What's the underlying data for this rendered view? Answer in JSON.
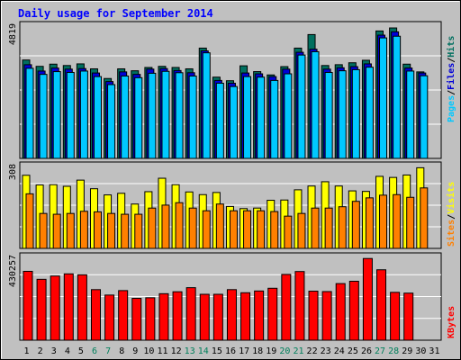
{
  "title": "Daily usage for September 2014",
  "colors": {
    "background": "#c0c0c0",
    "title": "#0000ff",
    "hits": "#006f5f",
    "files": "#0000d8",
    "pages": "#00c8ff",
    "visits": "#ffff00",
    "sites": "#ff8000",
    "kbytes": "#ff0000",
    "weekday_label": "#000000",
    "weekend_label": "#00805c"
  },
  "chart_data": [
    {
      "type": "bar",
      "panel": "hits-files-pages",
      "ymax_label": "4819",
      "side_legend": [
        "Pages",
        "Files",
        "Hits"
      ],
      "categories": [
        "1",
        "2",
        "3",
        "4",
        "5",
        "6",
        "7",
        "8",
        "9",
        "10",
        "11",
        "12",
        "13",
        "14",
        "15",
        "16",
        "17",
        "18",
        "19",
        "20",
        "21",
        "22",
        "23",
        "24",
        "25",
        "26",
        "27",
        "28",
        "29",
        "30",
        "31"
      ],
      "weekend_days": [
        "6",
        "7",
        "13",
        "14",
        "20",
        "21",
        "27",
        "28"
      ],
      "ylim": [
        0,
        4819
      ],
      "series": [
        {
          "name": "Hits",
          "values": [
            3560,
            3330,
            3410,
            3360,
            3420,
            3240,
            2890,
            3240,
            3170,
            3290,
            3330,
            3290,
            3240,
            3990,
            2940,
            2810,
            3350,
            3140,
            3020,
            3320,
            3990,
            4480,
            3360,
            3390,
            3460,
            3550,
            4610,
            4720,
            3410,
            3130,
            0
          ]
        },
        {
          "name": "Files",
          "values": [
            3390,
            3160,
            3270,
            3230,
            3250,
            3090,
            2780,
            3130,
            3040,
            3230,
            3250,
            3180,
            3100,
            3890,
            2820,
            2720,
            3090,
            3060,
            2960,
            3230,
            3840,
            3950,
            3230,
            3280,
            3320,
            3420,
            4460,
            4580,
            3270,
            3090,
            0
          ]
        },
        {
          "name": "Pages",
          "values": [
            3260,
            3040,
            3140,
            3110,
            3160,
            2960,
            2670,
            2980,
            2920,
            3080,
            3150,
            3100,
            2980,
            3820,
            2720,
            2600,
            2960,
            2940,
            2820,
            3060,
            3740,
            3860,
            3110,
            3170,
            3210,
            3300,
            4360,
            4420,
            3160,
            2990,
            0
          ]
        }
      ]
    },
    {
      "type": "bar",
      "panel": "visits-sites",
      "ymax_label": "308",
      "side_legend": [
        "Sites",
        "Visits"
      ],
      "categories": [
        "1",
        "2",
        "3",
        "4",
        "5",
        "6",
        "7",
        "8",
        "9",
        "10",
        "11",
        "12",
        "13",
        "14",
        "15",
        "16",
        "17",
        "18",
        "19",
        "20",
        "21",
        "22",
        "23",
        "24",
        "25",
        "26",
        "27",
        "28",
        "29",
        "30",
        "31"
      ],
      "ylim": [
        0,
        308
      ],
      "series": [
        {
          "name": "Visits",
          "values": [
            272,
            236,
            237,
            231,
            254,
            222,
            199,
            205,
            165,
            211,
            261,
            237,
            210,
            200,
            208,
            156,
            148,
            150,
            179,
            180,
            218,
            232,
            248,
            232,
            214,
            212,
            268,
            264,
            273,
            300,
            0
          ]
        },
        {
          "name": "Sites",
          "values": [
            203,
            130,
            127,
            130,
            138,
            136,
            130,
            127,
            127,
            150,
            161,
            170,
            150,
            140,
            165,
            140,
            140,
            140,
            137,
            120,
            130,
            150,
            150,
            155,
            175,
            188,
            198,
            200,
            190,
            225,
            0
          ]
        }
      ]
    },
    {
      "type": "bar",
      "panel": "kbytes",
      "ymax_label": "430257",
      "side_legend": [
        "KBytes"
      ],
      "categories": [
        "1",
        "2",
        "3",
        "4",
        "5",
        "6",
        "7",
        "8",
        "9",
        "10",
        "11",
        "12",
        "13",
        "14",
        "15",
        "16",
        "17",
        "18",
        "19",
        "20",
        "21",
        "22",
        "23",
        "24",
        "25",
        "26",
        "27",
        "28",
        "29",
        "30",
        "31"
      ],
      "ylim": [
        0,
        430257
      ],
      "series": [
        {
          "name": "KBytes",
          "values": [
            354000,
            313000,
            330000,
            341000,
            336000,
            260000,
            232000,
            255000,
            215000,
            218000,
            239000,
            249000,
            270000,
            236000,
            236000,
            260000,
            244000,
            253000,
            267000,
            338000,
            353000,
            252000,
            250000,
            291000,
            303000,
            420000,
            362000,
            246000,
            242000,
            0,
            0
          ]
        }
      ]
    }
  ]
}
